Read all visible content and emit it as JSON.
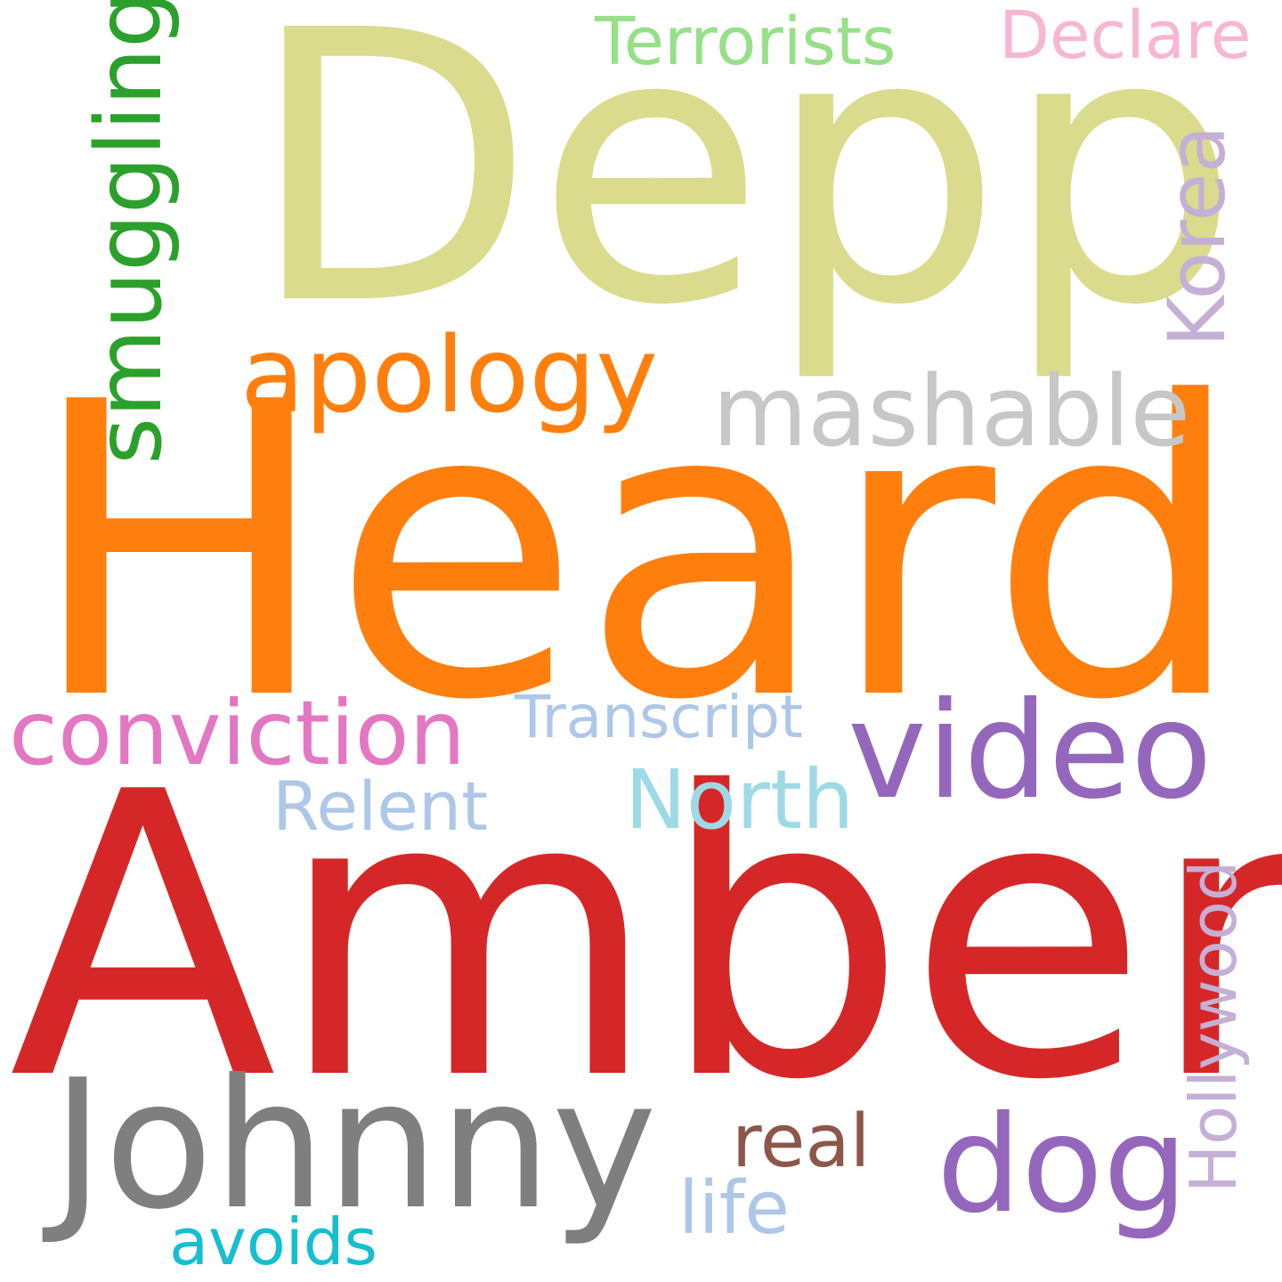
{
  "background": "#ffffff",
  "words": [
    {
      "text": "Heard",
      "color": "#ff7f0e"
    },
    {
      "text": "Amber",
      "color": "#d62728"
    },
    {
      "text": "Depp",
      "color": "#dbdb8d"
    },
    {
      "text": "Johnny",
      "color": "#7f7f7f"
    },
    {
      "text": "video",
      "color": "#9467bd"
    },
    {
      "text": "dog",
      "color": "#9467bd"
    },
    {
      "text": "apology",
      "color": "#ff7f0e"
    },
    {
      "text": "mashable",
      "color": "#c7c7c7"
    },
    {
      "text": "smuggling",
      "color": "#2ca02c"
    },
    {
      "text": "conviction",
      "color": "#e377c2"
    },
    {
      "text": "North",
      "color": "#9edae5"
    },
    {
      "text": "Korea",
      "color": "#c5b0d5"
    },
    {
      "text": "Terrorists",
      "color": "#98df8a"
    },
    {
      "text": "Declare",
      "color": "#f7b6d2"
    },
    {
      "text": "Transcript",
      "color": "#aec7e8"
    },
    {
      "text": "Relent",
      "color": "#aec7e8"
    },
    {
      "text": "Hollywood",
      "color": "#c5b0d5"
    },
    {
      "text": "real",
      "color": "#8c564b"
    },
    {
      "text": "life",
      "color": "#aec7e8"
    },
    {
      "text": "avoids",
      "color": "#17becf"
    }
  ]
}
